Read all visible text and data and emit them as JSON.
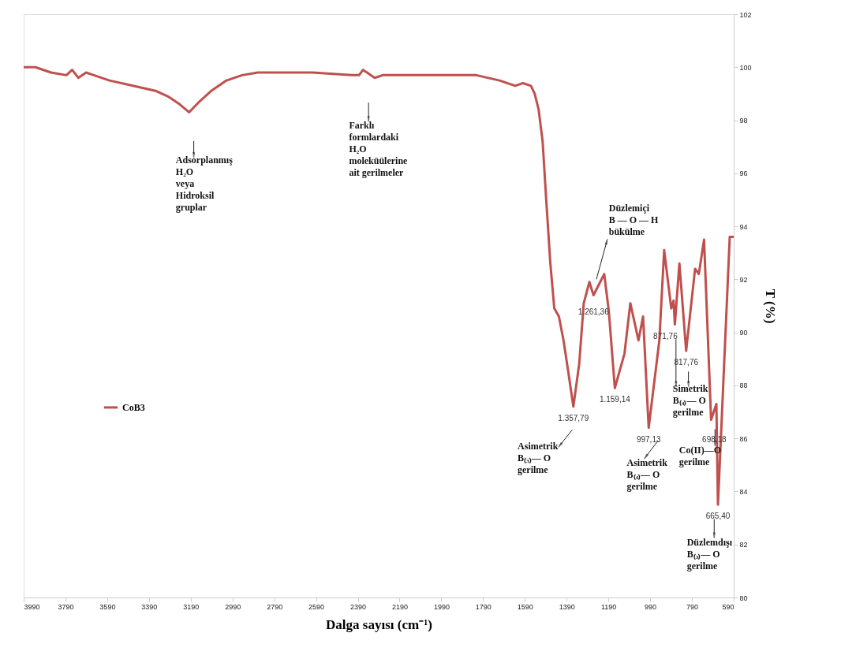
{
  "chart_data": {
    "type": "line",
    "xlabel": "Dalga sayısı (cm⁻¹)",
    "ylabel": "T (%)",
    "xlim": [
      3990,
      590
    ],
    "xticks": [
      3990,
      3790,
      3590,
      3390,
      3190,
      2990,
      2790,
      2590,
      2390,
      2190,
      1990,
      1790,
      1590,
      1390,
      1190,
      990,
      790,
      590
    ],
    "ylim": [
      80,
      102
    ],
    "yticks": [
      80,
      82,
      84,
      86,
      88,
      90,
      92,
      94,
      96,
      98,
      100,
      102
    ],
    "grid": false,
    "legend": "left",
    "marker": "none",
    "line_style": "solid",
    "x": [
      3990,
      3934,
      3859,
      3785,
      3758,
      3728,
      3691,
      3654,
      3579,
      3467,
      3355,
      3299,
      3243,
      3198,
      3149,
      3093,
      3019,
      2944,
      2869,
      2607,
      2421,
      2384,
      2365,
      2346,
      2309,
      2271,
      2197,
      2010,
      1823,
      1711,
      1636,
      1599,
      1561,
      1543,
      1524,
      1505,
      1487,
      1468,
      1449,
      1427,
      1405,
      1382,
      1357.79,
      1330,
      1308,
      1281,
      1261.36,
      1210,
      1188,
      1159.14,
      1113,
      1085,
      1046,
      1024,
      997.13,
      946,
      923,
      889,
      878,
      871.76,
      850,
      817.76,
      775,
      757,
      732,
      698.18,
      673,
      665.4,
      609,
      590
    ],
    "series": [
      {
        "name": "CoB3",
        "color": "#c0504d",
        "values": [
          100.0,
          100.0,
          99.8,
          99.7,
          99.9,
          99.6,
          99.8,
          99.7,
          99.5,
          99.3,
          99.1,
          98.9,
          98.6,
          98.3,
          98.7,
          99.1,
          99.5,
          99.7,
          99.8,
          99.8,
          99.7,
          99.7,
          99.9,
          99.8,
          99.6,
          99.7,
          99.7,
          99.7,
          99.7,
          99.5,
          99.3,
          99.4,
          99.3,
          99.0,
          98.4,
          97.2,
          94.9,
          92.6,
          90.9,
          90.6,
          89.7,
          88.5,
          87.2,
          88.8,
          91.1,
          91.9,
          91.4,
          92.2,
          90.8,
          87.9,
          89.2,
          91.1,
          89.7,
          90.6,
          86.4,
          89.7,
          93.1,
          90.9,
          91.2,
          90.3,
          92.6,
          89.3,
          92.4,
          92.2,
          93.5,
          86.7,
          87.3,
          83.5,
          93.6,
          93.6
        ]
      }
    ],
    "annotations": [
      "Adsorplanmış\nH₂O\nveya\nHidroksil\ngruplar",
      "Farklı\nformlardaki\nH₂O\nmoleküülerine\nait gerilmeler",
      "Düzlemiçi\nB — O — H\nbükülme",
      "Asimetrik\nB₍₃₎— O\ngerilme",
      "Asimetrik\nB₍₄₎— O\ngerilme",
      "Simetrik\nB₍₄₎— O\ngerilme",
      "Co(II)—O\ngerilme",
      "Düzlemdışı\nB₍₃₎— O\ngerilme",
      {
        "text": "1.357,79",
        "x": 1357.79,
        "y": 87.2
      },
      {
        "text": "1.261,36",
        "x": 1261.36,
        "y": 91.4
      },
      {
        "text": "1.159,14",
        "x": 1159.14,
        "y": 87.9
      },
      {
        "text": "997,13",
        "x": 997.13,
        "y": 86.4
      },
      {
        "text": "871,76",
        "x": 871.76,
        "y": 90.3
      },
      {
        "text": "817,76",
        "x": 817.76,
        "y": 89.3
      },
      {
        "text": "698,18",
        "x": 698.18,
        "y": 86.7
      },
      {
        "text": "665,40",
        "x": 665.4,
        "y": 83.5
      }
    ]
  }
}
